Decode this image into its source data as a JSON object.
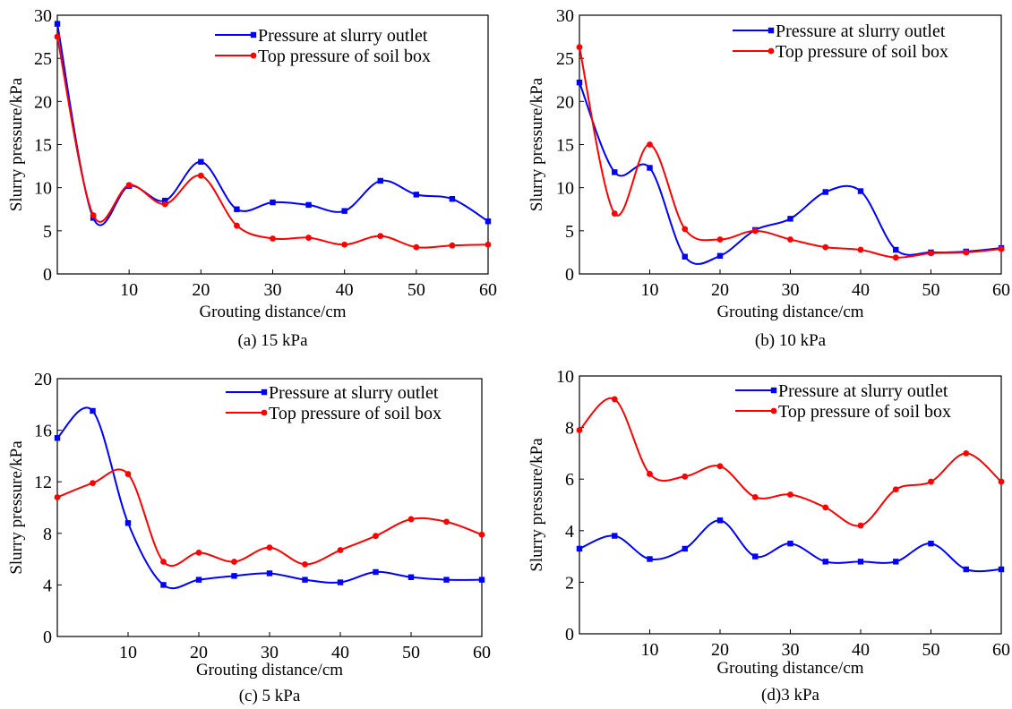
{
  "chart_data": [
    {
      "type": "line",
      "caption": "(a) 15 kPa",
      "xlabel": "Grouting distance/cm",
      "ylabel": "Slurry pressure/kPa",
      "xlim": [
        0,
        60
      ],
      "ylim": [
        0,
        30
      ],
      "xticks": [
        10,
        20,
        30,
        40,
        50,
        60
      ],
      "yticks": [
        0,
        5,
        10,
        15,
        20,
        25,
        30
      ],
      "legend_position": "top-right",
      "series": [
        {
          "name": "Pressure at slurry outlet",
          "color": "#0000ff",
          "marker": "square",
          "x": [
            0,
            5,
            10,
            15,
            20,
            25,
            30,
            35,
            40,
            45,
            50,
            55,
            60
          ],
          "y": [
            29,
            6.5,
            10.2,
            8.5,
            13,
            7.5,
            8.3,
            8.0,
            7.3,
            10.8,
            9.2,
            8.7,
            6.1
          ]
        },
        {
          "name": "Top pressure of soil box",
          "color": "#ff0000",
          "marker": "circle",
          "x": [
            0,
            5,
            10,
            15,
            20,
            25,
            30,
            35,
            40,
            45,
            50,
            55,
            60
          ],
          "y": [
            27.5,
            6.8,
            10.3,
            8.1,
            11.4,
            5.6,
            4.1,
            4.2,
            3.4,
            4.4,
            3.1,
            3.3,
            3.4
          ]
        }
      ]
    },
    {
      "type": "line",
      "caption": "(b) 10 kPa",
      "xlabel": "Grouting distance/cm",
      "ylabel": "Slurry pressure/kPa",
      "xlim": [
        0,
        60
      ],
      "ylim": [
        0,
        30
      ],
      "xticks": [
        10,
        20,
        30,
        40,
        50,
        60
      ],
      "yticks": [
        0,
        5,
        10,
        15,
        20,
        25,
        30
      ],
      "legend_position": "top-right",
      "series": [
        {
          "name": "Pressure at slurry outlet",
          "color": "#0000ff",
          "marker": "square",
          "x": [
            0,
            5,
            10,
            15,
            20,
            25,
            30,
            35,
            40,
            45,
            50,
            55,
            60
          ],
          "y": [
            22.2,
            11.8,
            12.3,
            2.0,
            2.1,
            5.1,
            6.4,
            9.5,
            9.6,
            2.8,
            2.5,
            2.6,
            3.0
          ]
        },
        {
          "name": "Top pressure of soil box",
          "color": "#ff0000",
          "marker": "circle",
          "x": [
            0,
            5,
            10,
            15,
            20,
            25,
            30,
            35,
            40,
            45,
            50,
            55,
            60
          ],
          "y": [
            26.3,
            7.0,
            15.0,
            5.2,
            4.0,
            5.0,
            4.0,
            3.1,
            2.8,
            1.9,
            2.4,
            2.5,
            2.9
          ]
        }
      ]
    },
    {
      "type": "line",
      "caption": "(c) 5 kPa",
      "xlabel": "Grouting distance/cm",
      "ylabel": "Slurry pressure/kPa",
      "xlim": [
        0,
        60
      ],
      "ylim": [
        0,
        20
      ],
      "xticks": [
        10,
        20,
        30,
        40,
        50,
        60
      ],
      "yticks": [
        0,
        4,
        8,
        12,
        16,
        20
      ],
      "legend_position": "top-right",
      "series": [
        {
          "name": "Pressure at slurry outlet",
          "color": "#0000ff",
          "marker": "square",
          "x": [
            0,
            5,
            10,
            15,
            20,
            25,
            30,
            35,
            40,
            45,
            50,
            55,
            60
          ],
          "y": [
            15.4,
            17.5,
            8.8,
            4.0,
            4.4,
            4.7,
            4.9,
            4.4,
            4.2,
            5.0,
            4.6,
            4.4,
            4.4
          ]
        },
        {
          "name": "Top pressure of soil box",
          "color": "#ff0000",
          "marker": "circle",
          "x": [
            0,
            5,
            10,
            15,
            20,
            25,
            30,
            35,
            40,
            45,
            50,
            55,
            60
          ],
          "y": [
            10.8,
            11.9,
            12.6,
            5.8,
            6.5,
            5.8,
            6.9,
            5.6,
            6.7,
            7.8,
            9.1,
            8.9,
            7.9
          ]
        }
      ]
    },
    {
      "type": "line",
      "caption": "(d)3 kPa",
      "xlabel": "Grouting distance/cm",
      "ylabel": "Slurry pressure/kPa",
      "xlim": [
        0,
        60
      ],
      "ylim": [
        0,
        10
      ],
      "xticks": [
        10,
        20,
        30,
        40,
        50,
        60
      ],
      "yticks": [
        0,
        2,
        4,
        6,
        8,
        10
      ],
      "legend_position": "top-right",
      "series": [
        {
          "name": "Pressure at slurry outlet",
          "color": "#0000ff",
          "marker": "square",
          "x": [
            0,
            5,
            10,
            15,
            20,
            25,
            30,
            35,
            40,
            45,
            50,
            55,
            60
          ],
          "y": [
            3.3,
            3.8,
            2.9,
            3.3,
            4.4,
            3.0,
            3.5,
            2.8,
            2.8,
            2.8,
            3.5,
            2.5,
            2.5
          ]
        },
        {
          "name": "Top pressure of soil box",
          "color": "#ff0000",
          "marker": "circle",
          "x": [
            0,
            5,
            10,
            15,
            20,
            25,
            30,
            35,
            40,
            45,
            50,
            55,
            60
          ],
          "y": [
            7.9,
            9.1,
            6.2,
            6.1,
            6.5,
            5.3,
            5.4,
            4.9,
            4.2,
            5.6,
            5.9,
            7.0,
            5.9
          ]
        }
      ]
    }
  ]
}
